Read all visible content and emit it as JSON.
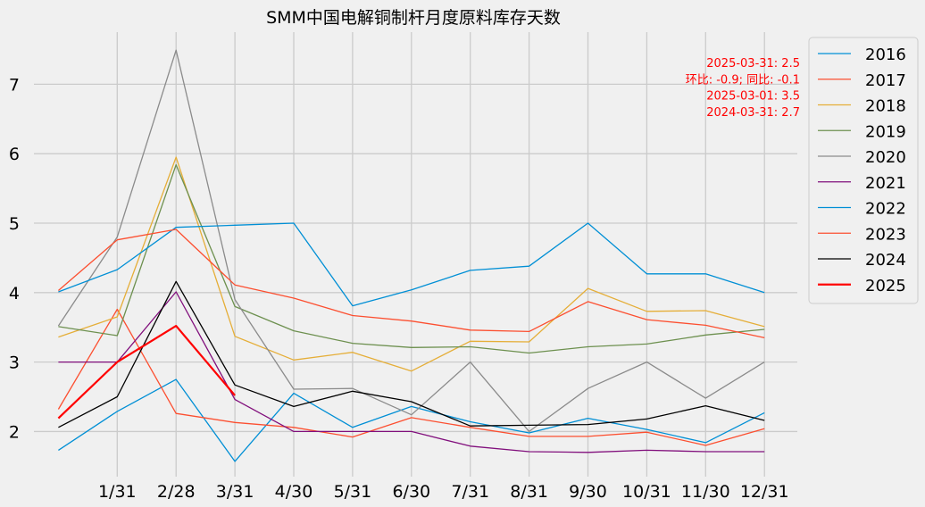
{
  "chart_data": {
    "type": "line",
    "title": "SMM中国电解铜制杆月度原料库存天数",
    "xlabel": "",
    "ylabel": "",
    "x": [
      "1/31",
      "2/28",
      "3/31",
      "4/30",
      "5/31",
      "6/30",
      "7/31",
      "8/31",
      "9/30",
      "10/31",
      "11/30",
      "12/31"
    ],
    "ylim": [
      1.35,
      7.75
    ],
    "yticks": [
      2,
      3,
      4,
      5,
      6,
      7
    ],
    "grid": true,
    "legend_position": "outside-right",
    "annotations": [
      "2025-03-31: 2.5",
      "环比: -0.9; 同比: -0.1",
      "2025-03-01: 3.5",
      "2024-03-31: 2.7"
    ],
    "series": [
      {
        "name": "2016",
        "color": "#008fd5",
        "width": 1.3,
        "x": [
          0,
          1,
          2,
          3,
          4,
          5,
          6,
          7,
          8,
          9,
          10,
          11,
          12
        ],
        "values": [
          1.73,
          2.29,
          2.75,
          1.57,
          2.55,
          2.06,
          2.36,
          2.14,
          1.98,
          2.19,
          2.03,
          1.84,
          2.27
        ]
      },
      {
        "name": "2017",
        "color": "#fc4f30",
        "width": 1.3,
        "x": [
          0,
          1,
          2,
          3,
          4,
          5,
          6,
          7,
          8,
          9,
          10,
          11,
          12
        ],
        "values": [
          2.32,
          3.76,
          2.26,
          2.13,
          2.06,
          1.92,
          2.2,
          2.06,
          1.93,
          1.93,
          1.99,
          1.8,
          2.04
        ]
      },
      {
        "name": "2018",
        "color": "#e5ae38",
        "width": 1.3,
        "x": [
          0,
          1,
          2,
          3,
          4,
          5,
          6,
          7,
          8,
          9,
          10,
          11,
          12
        ],
        "values": [
          3.36,
          3.65,
          5.95,
          3.37,
          3.03,
          3.14,
          2.87,
          3.3,
          3.29,
          4.06,
          3.73,
          3.74,
          3.51
        ]
      },
      {
        "name": "2019",
        "color": "#6d904f",
        "width": 1.3,
        "x": [
          0,
          1,
          2,
          3,
          4,
          5,
          6,
          7,
          8,
          9,
          10,
          11,
          12
        ],
        "values": [
          3.51,
          3.38,
          5.84,
          3.8,
          3.45,
          3.27,
          3.21,
          3.22,
          3.13,
          3.22,
          3.26,
          3.39,
          3.47
        ]
      },
      {
        "name": "2020",
        "color": "#8b8b8b",
        "width": 1.3,
        "x": [
          0,
          1,
          2,
          3,
          4,
          5,
          6,
          7,
          8,
          9,
          10,
          11,
          12
        ],
        "values": [
          3.52,
          4.8,
          7.49,
          3.9,
          2.61,
          2.62,
          2.24,
          3.0,
          2.0,
          2.62,
          3.0,
          2.48,
          3.0
        ]
      },
      {
        "name": "2021",
        "color": "#810f7c",
        "width": 1.3,
        "x": [
          0,
          1,
          2,
          3,
          4,
          5,
          6,
          7,
          8,
          9,
          10,
          11,
          12
        ],
        "values": [
          3.0,
          3.0,
          4.01,
          2.46,
          2.0,
          2.0,
          2.0,
          1.79,
          1.71,
          1.7,
          1.73,
          1.71,
          1.71
        ]
      },
      {
        "name": "2022",
        "color": "#008fd5",
        "width": 1.3,
        "x": [
          0,
          1,
          2,
          3,
          4,
          5,
          6,
          7,
          8,
          9,
          10,
          11,
          12
        ],
        "values": [
          4.01,
          4.33,
          4.94,
          4.97,
          5.0,
          3.81,
          4.04,
          4.32,
          4.38,
          5.0,
          4.27,
          4.27,
          4.0
        ]
      },
      {
        "name": "2023",
        "color": "#fc4f30",
        "width": 1.3,
        "x": [
          0,
          1,
          2,
          3,
          4,
          5,
          6,
          7,
          8,
          9,
          10,
          11,
          12
        ],
        "values": [
          4.03,
          4.76,
          4.91,
          4.11,
          3.92,
          3.67,
          3.59,
          3.46,
          3.44,
          3.87,
          3.61,
          3.53,
          3.35
        ]
      },
      {
        "name": "2024",
        "color": "#000000",
        "width": 1.3,
        "x": [
          0,
          1,
          2,
          3,
          4,
          5,
          6,
          7,
          8,
          9,
          10,
          11,
          12
        ],
        "values": [
          2.06,
          2.5,
          4.16,
          2.67,
          2.36,
          2.58,
          2.43,
          2.08,
          2.09,
          2.1,
          2.18,
          2.37,
          2.16
        ]
      },
      {
        "name": "2025",
        "color": "#ff0000",
        "width": 2.2,
        "x": [
          0,
          1,
          2,
          3
        ],
        "values": [
          2.19,
          3.0,
          3.52,
          2.52
        ]
      }
    ]
  }
}
